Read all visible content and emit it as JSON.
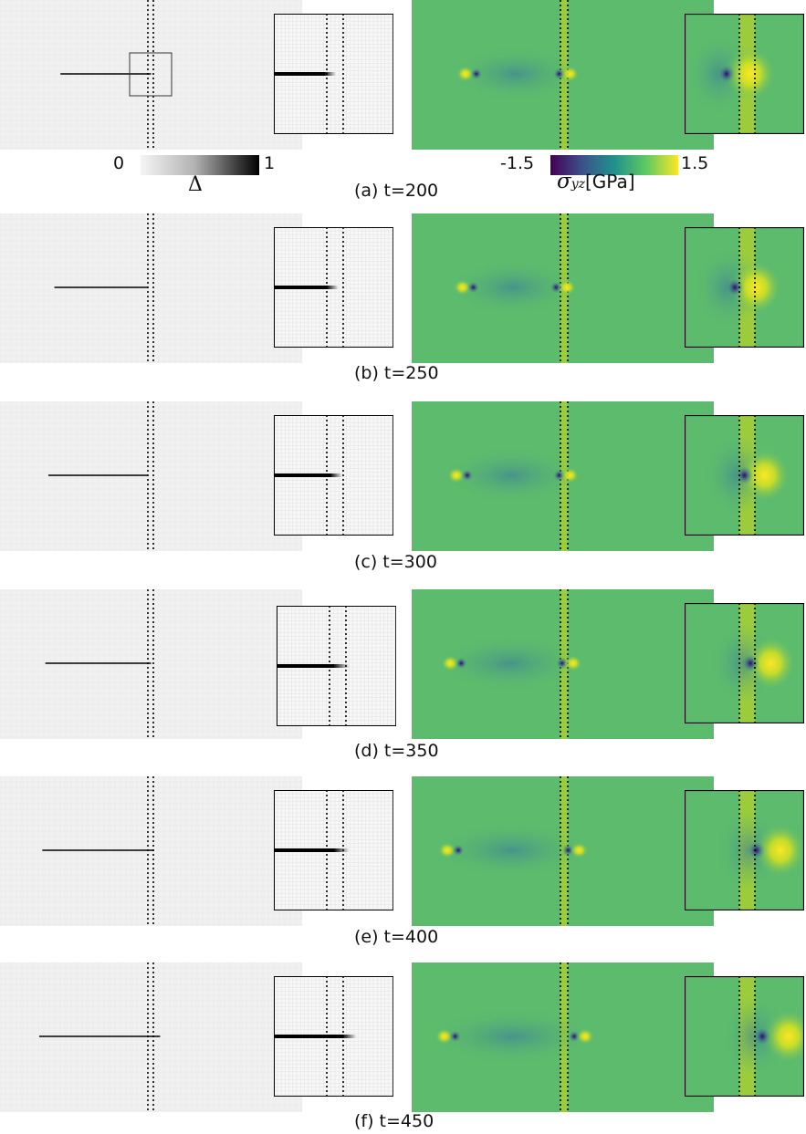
{
  "figure": {
    "rows": [
      {
        "label": "(a) t=200",
        "zoom_crack": 0.42,
        "zoom_fade": 0.1,
        "zoom_right": false,
        "main_crack_start": 0.2,
        "main_crack_end": 0.5,
        "stress_left_tip": 0.19,
        "stress_right_tip": 0.5,
        "zoom_stress_tip": 0.35,
        "zoom_stress_yellow": 0.55
      },
      {
        "label": "(b) t=250",
        "zoom_crack": 0.44,
        "zoom_fade": 0.1,
        "zoom_right": false,
        "main_crack_start": 0.18,
        "main_crack_end": 0.49,
        "stress_left_tip": 0.18,
        "stress_right_tip": 0.49,
        "zoom_stress_tip": 0.42,
        "zoom_stress_yellow": 0.6
      },
      {
        "label": "(c) t=300",
        "zoom_crack": 0.47,
        "zoom_fade": 0.1,
        "zoom_right": false,
        "main_crack_start": 0.16,
        "main_crack_end": 0.49,
        "stress_left_tip": 0.16,
        "stress_right_tip": 0.5,
        "zoom_stress_tip": 0.5,
        "zoom_stress_yellow": 0.67
      },
      {
        "label": "(d) t=350",
        "zoom_crack": 0.47,
        "zoom_fade": 0.14,
        "zoom_right": false,
        "main_crack_start": 0.15,
        "main_crack_end": 0.5,
        "stress_left_tip": 0.14,
        "stress_right_tip": 0.51,
        "zoom_stress_tip": 0.55,
        "zoom_stress_yellow": 0.72
      },
      {
        "label": "(e) t=400",
        "zoom_crack": 0.5,
        "zoom_fade": 0.13,
        "zoom_right": true,
        "main_crack_start": 0.14,
        "main_crack_end": 0.51,
        "stress_left_tip": 0.13,
        "stress_right_tip": 0.53,
        "zoom_stress_tip": 0.6,
        "zoom_stress_yellow": 0.8
      },
      {
        "label": "(f) t=450",
        "zoom_crack": 0.57,
        "zoom_fade": 0.12,
        "zoom_right": true,
        "main_crack_start": 0.13,
        "main_crack_end": 0.53,
        "stress_left_tip": 0.12,
        "stress_right_tip": 0.55,
        "zoom_stress_tip": 0.65,
        "zoom_stress_yellow": 0.87
      }
    ],
    "damage_colorbar": {
      "min_label": "0",
      "max_label": "1",
      "quantity": "Δ",
      "colors": [
        "#f2f2f2",
        "#000000"
      ]
    },
    "stress_colorbar": {
      "min_label": "-1.5",
      "max_label": "1.5",
      "quantity_symbol": "σ",
      "quantity_subscript": "yz",
      "unit": "[GPa]",
      "colors": [
        "#440154",
        "#3b528b",
        "#21918c",
        "#5ec962",
        "#fde725"
      ]
    },
    "colors": {
      "stress_background": "#5cbb6d",
      "interface_band": "#9ccc3c",
      "damage_background": "#f1f1f1",
      "crack": "#000000"
    }
  }
}
